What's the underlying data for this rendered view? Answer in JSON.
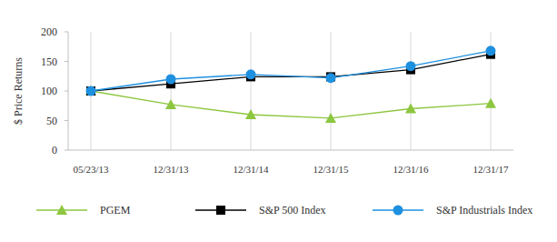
{
  "chart_data": {
    "type": "line",
    "y_label": "$ Price Returns",
    "categories": [
      "05/23/13",
      "12/31/13",
      "12/31/14",
      "12/31/15",
      "12/31/16",
      "12/31/17"
    ],
    "series": [
      {
        "name": "PGEM",
        "color": "#8dc63f",
        "marker": "triangle",
        "values": [
          100,
          77,
          60,
          54,
          70,
          79
        ]
      },
      {
        "name": "S&P 500 Index",
        "color": "#000000",
        "marker": "square",
        "values": [
          100,
          112,
          124,
          124,
          136,
          162
        ]
      },
      {
        "name": "S&P Industrials Index",
        "color": "#1e90e0",
        "marker": "circle",
        "values": [
          100,
          120,
          128,
          122,
          142,
          168
        ]
      }
    ],
    "ylim": [
      0,
      200
    ],
    "yticks": [
      0,
      50,
      100,
      150,
      200
    ],
    "grid": true,
    "legend": "bottom"
  }
}
